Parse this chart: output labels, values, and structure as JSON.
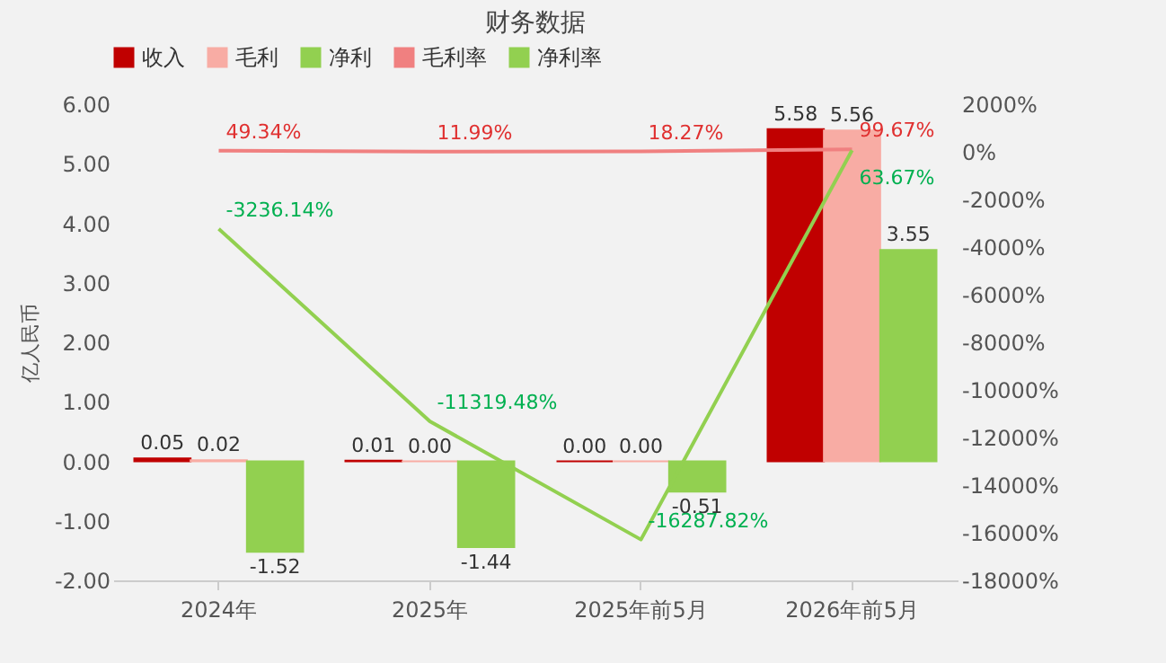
{
  "chart_data": {
    "type": "bar",
    "title": "财务数据",
    "ylabel": "亿人民币",
    "categories": [
      "2024年",
      "2025年",
      "2025年前5月",
      "2026年前5月"
    ],
    "series": [
      {
        "name": "收入",
        "color": "#c00000",
        "values": [
          0.05,
          0.01,
          0,
          5.58
        ],
        "value_labels": [
          "0.05",
          "0.01",
          "0.00",
          "5.58"
        ]
      },
      {
        "name": "毛利",
        "color": "#f8aca4",
        "values": [
          0.02,
          0,
          0,
          5.56
        ],
        "value_labels": [
          "0.02",
          "0.00",
          "0.00",
          "5.56"
        ]
      },
      {
        "name": "净利",
        "color": "#92d050",
        "values": [
          -1.52,
          -1.44,
          -0.51,
          3.55
        ],
        "value_labels": [
          "-1.52",
          "-1.44",
          "-0.51",
          "3.55"
        ]
      },
      {
        "name": "毛利率",
        "type": "line",
        "axis": "y2",
        "color": "#f08080",
        "values": [
          49.34,
          11.99,
          18.27,
          99.67
        ],
        "value_labels": [
          "49.34%",
          "11.99%",
          "18.27%",
          "99.67%"
        ]
      },
      {
        "name": "净利率",
        "type": "line",
        "axis": "y2",
        "color": "#92d050",
        "values": [
          -3236.14,
          -11319.48,
          -16287.82,
          63.67
        ],
        "value_labels": [
          "-3236.14%",
          "-11319.48%",
          "-16287.82%",
          "63.67%"
        ]
      }
    ],
    "ylim": [
      -2,
      6
    ],
    "yticks": [
      {
        "value": -2,
        "label": "-2.00"
      },
      {
        "value": -1,
        "label": "-1.00"
      },
      {
        "value": 0,
        "label": "0.00"
      },
      {
        "value": 1,
        "label": "1.00"
      },
      {
        "value": 2,
        "label": "2.00"
      },
      {
        "value": 3,
        "label": "3.00"
      },
      {
        "value": 4,
        "label": "4.00"
      },
      {
        "value": 5,
        "label": "5.00"
      },
      {
        "value": 6,
        "label": "6.00"
      }
    ],
    "y2lim": [
      -18000,
      2000
    ],
    "y2ticks": [
      {
        "value": -18000,
        "label": "-18000%"
      },
      {
        "value": -16000,
        "label": "-16000%"
      },
      {
        "value": -14000,
        "label": "-14000%"
      },
      {
        "value": -12000,
        "label": "-12000%"
      },
      {
        "value": -10000,
        "label": "-10000%"
      },
      {
        "value": -8000,
        "label": "-8000%"
      },
      {
        "value": -6000,
        "label": "-6000%"
      },
      {
        "value": -4000,
        "label": "-4000%"
      },
      {
        "value": -2000,
        "label": "-2000%"
      },
      {
        "value": 0,
        "label": "0%"
      },
      {
        "value": 2000,
        "label": "2000%"
      }
    ],
    "legend": "top"
  }
}
